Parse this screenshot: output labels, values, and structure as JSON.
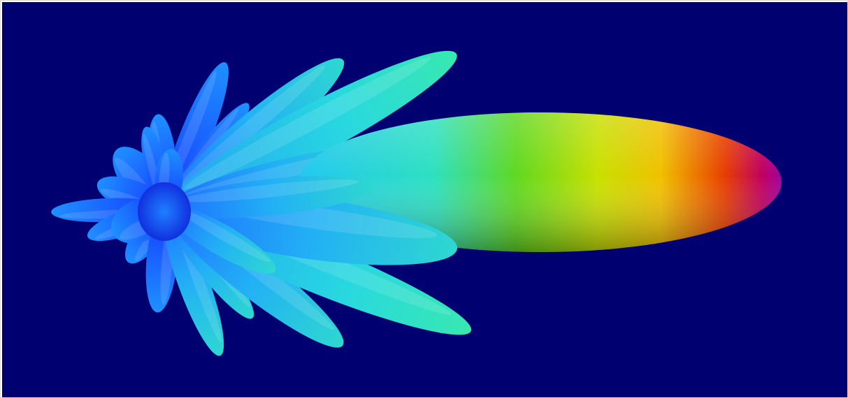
{
  "scene": {
    "subject": "3d-radiation-pattern",
    "background_color": "#000070",
    "frame_color": "#ffffff",
    "colormap": [
      "#1a3cff",
      "#1f7fff",
      "#22c8f0",
      "#2ee0c0",
      "#60d820",
      "#c8e000",
      "#f0c000",
      "#e84000",
      "#c00060",
      "#a000a0"
    ],
    "main_lobe_label": "",
    "side_lobe_count": 22
  }
}
